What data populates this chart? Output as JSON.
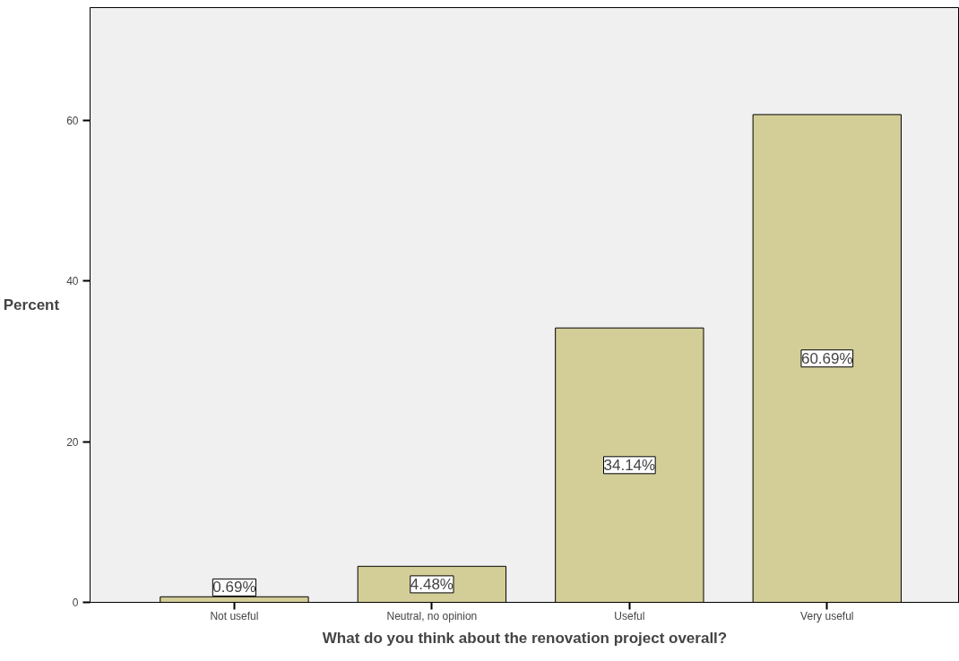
{
  "chart_data": {
    "type": "bar",
    "xlabel": "What do you think about the renovation project overall?",
    "ylabel": "Percent",
    "categories": [
      "Not useful",
      "Neutral, no opinion",
      "Useful",
      "Very useful"
    ],
    "values": [
      0.69,
      4.48,
      34.14,
      60.69
    ],
    "value_labels": [
      "0.69%",
      "4.48%",
      "34.14%",
      "60.69%"
    ],
    "color": "#d3ce97",
    "ylim": [
      0,
      74
    ],
    "yticks": [
      0,
      20,
      40,
      60
    ],
    "grid": false
  }
}
